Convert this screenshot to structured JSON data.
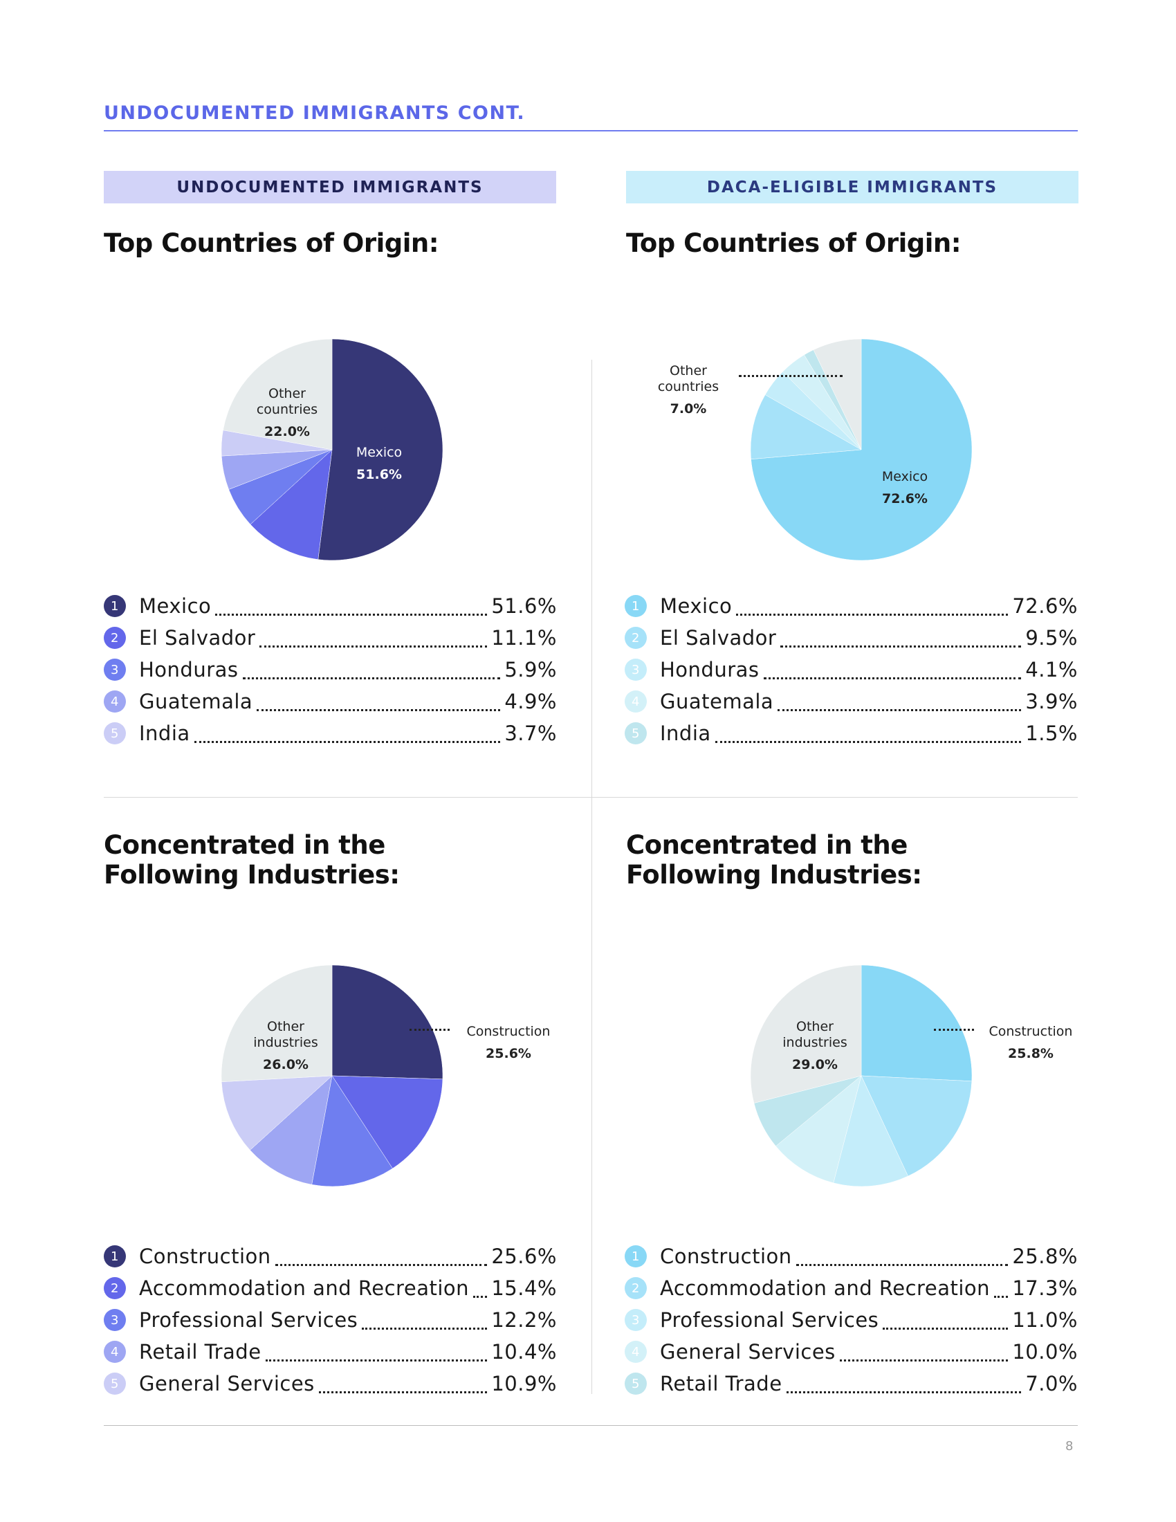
{
  "page_title": "UNDOCUMENTED IMMIGRANTS CONT.",
  "page_number": "8",
  "colors": {
    "accent": "#5b67e8",
    "undocumented": [
      "#363777",
      "#6367ea",
      "#6f7ef0",
      "#9ea6f3",
      "#cbcdf6",
      "#e6ebec"
    ],
    "daca": [
      "#88d8f6",
      "#a6e2f9",
      "#c4edfa",
      "#d3f1f8",
      "#bfe6ee",
      "#e6ebec"
    ]
  },
  "panels": {
    "undocumented": {
      "banner": "UNDOCUMENTED IMMIGRANTS",
      "origin_heading": "Top Countries of Origin:",
      "industry_heading": "Concentrated in the\nFollowing Industries:"
    },
    "daca": {
      "banner": "DACA-ELIGIBLE IMMIGRANTS",
      "origin_heading": "Top Countries of Origin:",
      "industry_heading": "Concentrated in the\nFollowing Industries:"
    }
  },
  "pie_labels": {
    "undoc_origin": {
      "main_name": "Mexico",
      "main_pct": "51.6%",
      "other_name": "Other\ncountries",
      "other_pct": "22.0%"
    },
    "daca_origin": {
      "main_name": "Mexico",
      "main_pct": "72.6%",
      "other_name": "Other\ncountries",
      "other_pct": "7.0%"
    },
    "undoc_industry": {
      "main_name": "Construction",
      "main_pct": "25.6%",
      "other_name": "Other\nindustries",
      "other_pct": "26.0%"
    },
    "daca_industry": {
      "main_name": "Construction",
      "main_pct": "25.8%",
      "other_name": "Other\nindustries",
      "other_pct": "29.0%"
    }
  },
  "chart_data": [
    {
      "type": "pie",
      "id": "undoc_origin",
      "title": "Top Countries of Origin:",
      "labels": [
        "Mexico",
        "El Salvador",
        "Honduras",
        "Guatemala",
        "India",
        "Other countries"
      ],
      "values": [
        51.6,
        11.1,
        5.9,
        4.9,
        3.7,
        22.0
      ],
      "value_labels": [
        "51.6%",
        "11.1%",
        "5.9%",
        "4.9%",
        "3.7%",
        "22.0%"
      ],
      "numbers": [
        "1",
        "2",
        "3",
        "4",
        "5",
        ""
      ]
    },
    {
      "type": "pie",
      "id": "daca_origin",
      "title": "Top Countries of Origin:",
      "labels": [
        "Mexico",
        "El Salvador",
        "Honduras",
        "Guatemala",
        "India",
        "Other countries"
      ],
      "values": [
        72.6,
        9.5,
        4.1,
        3.9,
        1.5,
        7.0
      ],
      "value_labels": [
        "72.6%",
        "9.5%",
        "4.1%",
        "3.9%",
        "1.5%",
        "7.0%"
      ],
      "numbers": [
        "1",
        "2",
        "3",
        "4",
        "5",
        ""
      ]
    },
    {
      "type": "pie",
      "id": "undoc_industry",
      "title": "Concentrated in the Following Industries:",
      "labels": [
        "Construction",
        "Accommodation and Recreation",
        "Professional Services",
        "Retail Trade",
        "General Services",
        "Other industries"
      ],
      "values": [
        25.6,
        15.4,
        12.2,
        10.4,
        10.9,
        26.0
      ],
      "value_labels": [
        "25.6%",
        "15.4%",
        "12.2%",
        "10.4%",
        "10.9%",
        "26.0%"
      ],
      "numbers": [
        "1",
        "2",
        "3",
        "4",
        "5",
        ""
      ]
    },
    {
      "type": "pie",
      "id": "daca_industry",
      "title": "Concentrated in the Following Industries:",
      "labels": [
        "Construction",
        "Accommodation and Recreation",
        "Professional Services",
        "General Services",
        "Retail Trade",
        "Other industries"
      ],
      "values": [
        25.8,
        17.3,
        11.0,
        10.0,
        7.0,
        29.0
      ],
      "value_labels": [
        "25.8%",
        "17.3%",
        "11.0%",
        "10.0%",
        "7.0%",
        "29.0%"
      ],
      "numbers": [
        "1",
        "2",
        "3",
        "4",
        "5",
        ""
      ]
    }
  ]
}
